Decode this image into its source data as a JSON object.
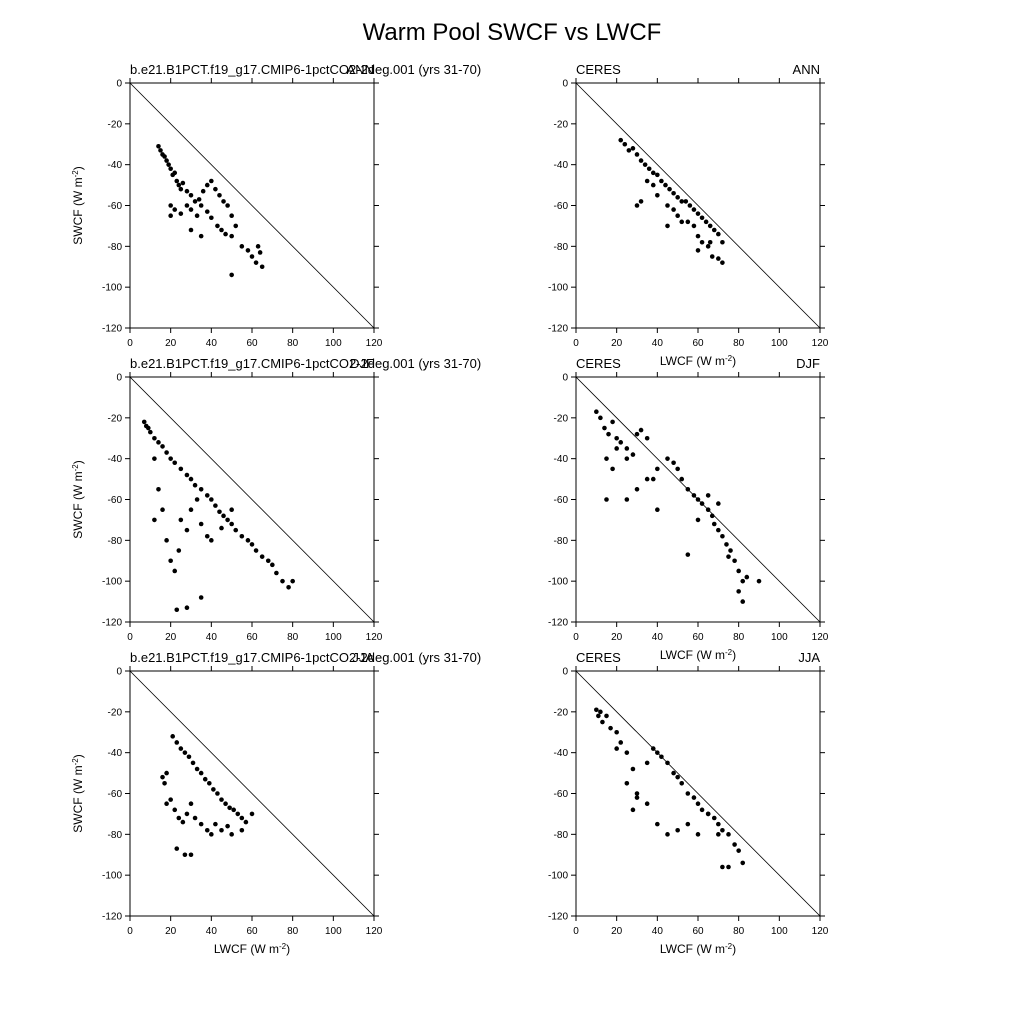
{
  "title": "Warm Pool SWCF vs LWCF",
  "chart_data": [
    {
      "type": "scatter",
      "title": "b.e21.B1PCT.f19_g17.CMIP6-1pctCO2-2deg.001 (yrs 31-70)",
      "season": "ANN",
      "color": "#000000",
      "ylabel": [
        "SWCF (W m",
        "-2",
        ")"
      ],
      "xlim": [
        0,
        120
      ],
      "ylim": [
        -120,
        0
      ],
      "xticks": [
        0,
        20,
        40,
        60,
        80,
        100,
        120
      ],
      "yticks": [
        0,
        -20,
        -40,
        -60,
        -80,
        -100,
        -120
      ],
      "x": [
        14,
        15,
        16,
        17,
        18,
        19,
        20,
        21,
        22,
        23,
        24,
        25,
        26,
        28,
        30,
        32,
        34,
        36,
        38,
        40,
        42,
        44,
        46,
        48,
        50,
        20,
        22,
        25,
        28,
        30,
        33,
        35,
        38,
        40,
        43,
        45,
        47,
        50,
        52,
        55,
        58,
        60,
        62,
        63,
        64,
        65,
        50,
        30,
        20,
        35
      ],
      "y": [
        -31,
        -33,
        -35,
        -36,
        -38,
        -40,
        -42,
        -45,
        -44,
        -48,
        -50,
        -52,
        -49,
        -53,
        -55,
        -58,
        -57,
        -53,
        -50,
        -48,
        -52,
        -55,
        -58,
        -60,
        -65,
        -60,
        -62,
        -64,
        -60,
        -62,
        -65,
        -60,
        -63,
        -66,
        -70,
        -72,
        -74,
        -75,
        -70,
        -80,
        -82,
        -85,
        -88,
        -80,
        -83,
        -90,
        -94,
        -72,
        -65,
        -75
      ]
    },
    {
      "type": "scatter",
      "title": "CERES",
      "season": "ANN",
      "color": "#000000",
      "xlabel": [
        "LWCF (W m",
        "-2",
        ")"
      ],
      "xlim": [
        0,
        120
      ],
      "ylim": [
        -120,
        0
      ],
      "xticks": [
        0,
        20,
        40,
        60,
        80,
        100,
        120
      ],
      "yticks": [
        0,
        -20,
        -40,
        -60,
        -80,
        -100,
        -120
      ],
      "x": [
        22,
        24,
        26,
        28,
        30,
        32,
        34,
        36,
        38,
        40,
        42,
        44,
        46,
        48,
        50,
        52,
        54,
        56,
        58,
        60,
        62,
        64,
        66,
        68,
        70,
        72,
        30,
        32,
        35,
        38,
        40,
        45,
        48,
        50,
        55,
        58,
        60,
        62,
        65,
        67,
        70,
        72,
        45,
        52,
        60,
        66
      ],
      "y": [
        -28,
        -30,
        -33,
        -32,
        -35,
        -38,
        -40,
        -42,
        -44,
        -45,
        -48,
        -50,
        -52,
        -54,
        -56,
        -58,
        -58,
        -60,
        -62,
        -64,
        -66,
        -68,
        -70,
        -72,
        -74,
        -78,
        -60,
        -58,
        -48,
        -50,
        -55,
        -60,
        -62,
        -65,
        -68,
        -70,
        -75,
        -78,
        -80,
        -85,
        -86,
        -88,
        -70,
        -68,
        -82,
        -78
      ]
    },
    {
      "type": "scatter",
      "title": "b.e21.B1PCT.f19_g17.CMIP6-1pctCO2-2deg.001 (yrs 31-70)",
      "season": "DJF",
      "color": "#000000",
      "ylabel": [
        "SWCF (W m",
        "-2",
        ")"
      ],
      "xlim": [
        0,
        120
      ],
      "ylim": [
        -120,
        0
      ],
      "xticks": [
        0,
        20,
        40,
        60,
        80,
        100,
        120
      ],
      "yticks": [
        0,
        -20,
        -40,
        -60,
        -80,
        -100,
        -120
      ],
      "x": [
        7,
        8,
        9,
        10,
        12,
        14,
        16,
        18,
        20,
        22,
        25,
        28,
        30,
        32,
        35,
        38,
        40,
        42,
        44,
        46,
        48,
        50,
        52,
        55,
        58,
        60,
        62,
        65,
        68,
        70,
        72,
        75,
        78,
        80,
        12,
        14,
        16,
        18,
        20,
        22,
        24,
        25,
        28,
        30,
        33,
        35,
        38,
        40,
        45,
        50,
        23,
        28,
        35,
        12
      ],
      "y": [
        -22,
        -24,
        -25,
        -27,
        -30,
        -32,
        -34,
        -37,
        -40,
        -42,
        -45,
        -48,
        -50,
        -53,
        -55,
        -58,
        -60,
        -63,
        -66,
        -68,
        -70,
        -72,
        -75,
        -78,
        -80,
        -82,
        -85,
        -88,
        -90,
        -92,
        -96,
        -100,
        -103,
        -100,
        -40,
        -55,
        -65,
        -80,
        -90,
        -95,
        -85,
        -70,
        -75,
        -65,
        -60,
        -72,
        -78,
        -80,
        -74,
        -65,
        -114,
        -113,
        -108,
        -70
      ]
    },
    {
      "type": "scatter",
      "title": "CERES",
      "season": "DJF",
      "color": "#000000",
      "xlabel": [
        "LWCF (W m",
        "-2",
        ")"
      ],
      "xlim": [
        0,
        120
      ],
      "ylim": [
        -120,
        0
      ],
      "xticks": [
        0,
        20,
        40,
        60,
        80,
        100,
        120
      ],
      "yticks": [
        0,
        -20,
        -40,
        -60,
        -80,
        -100,
        -120
      ],
      "x": [
        10,
        12,
        14,
        16,
        18,
        20,
        22,
        25,
        28,
        30,
        32,
        35,
        38,
        40,
        45,
        48,
        50,
        52,
        55,
        58,
        60,
        62,
        65,
        67,
        68,
        70,
        72,
        74,
        76,
        78,
        80,
        82,
        84,
        90,
        15,
        18,
        20,
        25,
        30,
        40,
        55,
        60,
        65,
        70,
        75,
        80,
        82,
        15,
        25,
        35
      ],
      "y": [
        -17,
        -20,
        -25,
        -28,
        -22,
        -30,
        -32,
        -35,
        -38,
        -28,
        -26,
        -30,
        -50,
        -45,
        -40,
        -42,
        -45,
        -50,
        -55,
        -58,
        -60,
        -62,
        -65,
        -68,
        -72,
        -75,
        -78,
        -82,
        -85,
        -90,
        -95,
        -100,
        -98,
        -100,
        -60,
        -45,
        -35,
        -40,
        -55,
        -65,
        -87,
        -70,
        -58,
        -62,
        -88,
        -105,
        -110,
        -40,
        -60,
        -50
      ]
    },
    {
      "type": "scatter",
      "title": "b.e21.B1PCT.f19_g17.CMIP6-1pctCO2-2deg.001 (yrs 31-70)",
      "season": "JJA",
      "color": "#000000",
      "xlabel": [
        "LWCF (W m",
        "-2",
        ")"
      ],
      "ylabel": [
        "SWCF (W m",
        "-2",
        ")"
      ],
      "xlim": [
        0,
        120
      ],
      "ylim": [
        -120,
        0
      ],
      "xticks": [
        0,
        20,
        40,
        60,
        80,
        100,
        120
      ],
      "yticks": [
        0,
        -20,
        -40,
        -60,
        -80,
        -100,
        -120
      ],
      "x": [
        21,
        23,
        25,
        27,
        29,
        31,
        33,
        35,
        37,
        39,
        41,
        43,
        45,
        47,
        49,
        51,
        53,
        55,
        57,
        60,
        16,
        17,
        18,
        20,
        22,
        24,
        26,
        28,
        30,
        32,
        35,
        38,
        40,
        42,
        45,
        48,
        50,
        55,
        23,
        27,
        30,
        18
      ],
      "y": [
        -32,
        -35,
        -38,
        -40,
        -42,
        -45,
        -48,
        -50,
        -53,
        -55,
        -58,
        -60,
        -63,
        -65,
        -67,
        -68,
        -70,
        -72,
        -74,
        -70,
        -52,
        -55,
        -65,
        -63,
        -68,
        -72,
        -74,
        -70,
        -65,
        -72,
        -75,
        -78,
        -80,
        -75,
        -78,
        -76,
        -80,
        -78,
        -87,
        -90,
        -90,
        -50
      ]
    },
    {
      "type": "scatter",
      "title": "CERES",
      "season": "JJA",
      "color": "#000000",
      "xlabel": [
        "LWCF (W m",
        "-2",
        ")"
      ],
      "xlim": [
        0,
        120
      ],
      "ylim": [
        -120,
        0
      ],
      "xticks": [
        0,
        20,
        40,
        60,
        80,
        100,
        120
      ],
      "yticks": [
        0,
        -20,
        -40,
        -60,
        -80,
        -100,
        -120
      ],
      "x": [
        10,
        11,
        12,
        13,
        15,
        17,
        20,
        22,
        25,
        28,
        30,
        35,
        38,
        40,
        42,
        45,
        48,
        50,
        52,
        55,
        58,
        60,
        62,
        65,
        68,
        70,
        72,
        75,
        78,
        80,
        82,
        20,
        25,
        28,
        30,
        35,
        40,
        45,
        50,
        55,
        60,
        65,
        70,
        72,
        75
      ],
      "y": [
        -19,
        -22,
        -20,
        -25,
        -22,
        -28,
        -30,
        -35,
        -40,
        -48,
        -60,
        -45,
        -38,
        -40,
        -42,
        -45,
        -50,
        -52,
        -55,
        -60,
        -62,
        -65,
        -68,
        -70,
        -72,
        -75,
        -78,
        -80,
        -85,
        -88,
        -94,
        -38,
        -55,
        -68,
        -62,
        -65,
        -75,
        -80,
        -78,
        -75,
        -80,
        -70,
        -80,
        -96,
        -96
      ]
    }
  ]
}
